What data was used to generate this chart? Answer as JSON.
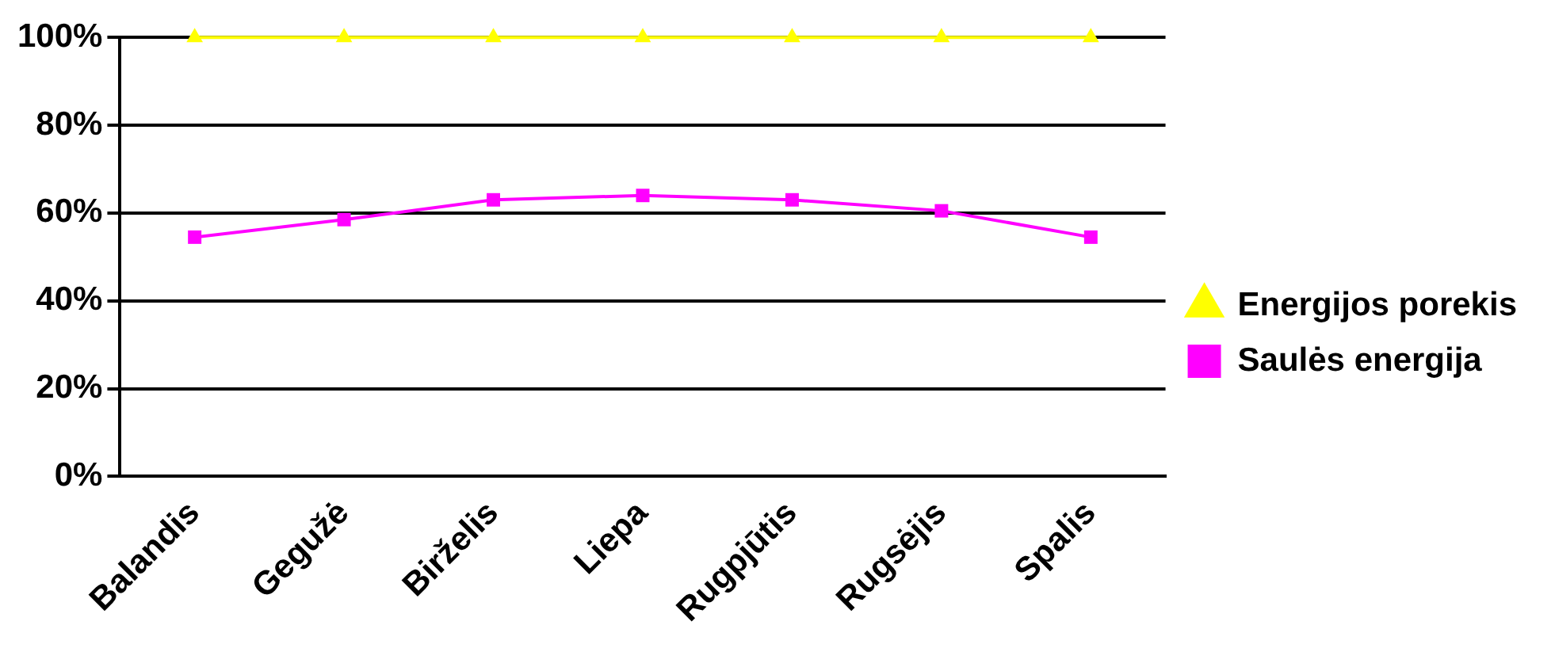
{
  "chart_data": {
    "type": "line",
    "categories": [
      "Balandis",
      "Gegužė",
      "Birželis",
      "Liepa",
      "Rugpjūtis",
      "Rugsėjis",
      "Spalis"
    ],
    "series": [
      {
        "name": "Energijos porekis",
        "color": "#ffff00",
        "marker": "triangle",
        "values": [
          100,
          100,
          100,
          100,
          100,
          100,
          100
        ]
      },
      {
        "name": "Saulės energija",
        "color": "#ff00ff",
        "marker": "square",
        "values": [
          54.5,
          58.5,
          63,
          64,
          63,
          60.5,
          54.5
        ]
      }
    ],
    "ylim": [
      0,
      100
    ],
    "yticks": [
      {
        "value": 0,
        "label": "0%"
      },
      {
        "value": 20,
        "label": "20%"
      },
      {
        "value": 40,
        "label": "40%"
      },
      {
        "value": 60,
        "label": "60%"
      },
      {
        "value": 80,
        "label": "80%"
      },
      {
        "value": 100,
        "label": "100%"
      }
    ],
    "grid": "y",
    "legend": "right"
  }
}
